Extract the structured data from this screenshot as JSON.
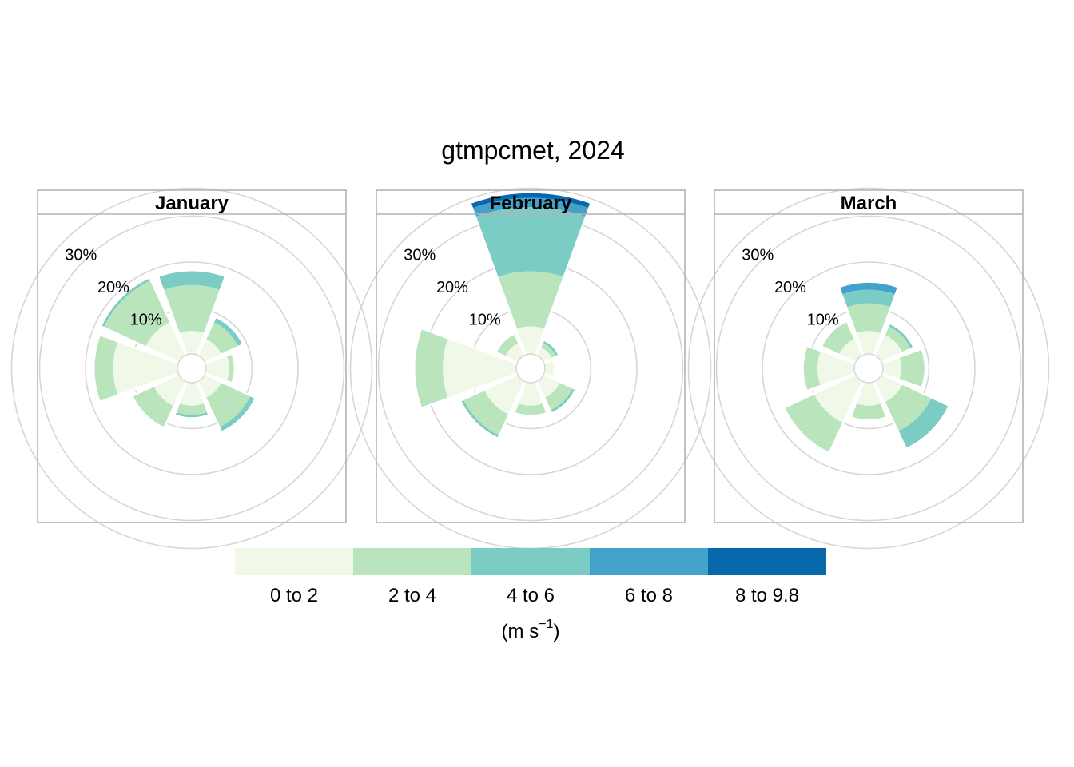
{
  "chart_data": {
    "type": "wind-rose",
    "title": "gtmpcmet, 2024",
    "ring_labels": [
      "10%",
      "20%",
      "30%"
    ],
    "rings": [
      10,
      20,
      30
    ],
    "legend": {
      "categories": [
        "0 to 2",
        "2 to 4",
        "4 to 6",
        "6 to 8",
        "8 to 9.8"
      ],
      "colors": [
        "#F0F9E8",
        "#BAE4BC",
        "#7BCCC4",
        "#43A2CA",
        "#0868AC"
      ],
      "units_main": "(m s",
      "units_sup": "−1",
      "units_close": ")"
    },
    "directions": [
      0,
      45,
      90,
      135,
      180,
      225,
      270,
      315
    ],
    "panels": [
      {
        "name": "January",
        "bins": [
          [
            5,
            10,
            3,
            0,
            0
          ],
          [
            4,
            4,
            1,
            0,
            0
          ],
          [
            5,
            1,
            0,
            0,
            0
          ],
          [
            4,
            7,
            1,
            0,
            0
          ],
          [
            5,
            2,
            0.5,
            0,
            0
          ],
          [
            6,
            5,
            0,
            0,
            0
          ],
          [
            14,
            4,
            0,
            0,
            0
          ],
          [
            8,
            10,
            0.5,
            0,
            0
          ]
        ]
      },
      {
        "name": "February",
        "bins": [
          [
            6,
            12,
            14,
            2,
            1
          ],
          [
            2,
            1,
            0.5,
            0,
            0
          ],
          [
            2,
            0,
            0,
            0,
            0
          ],
          [
            4,
            3,
            0.5,
            0,
            0
          ],
          [
            5,
            2,
            0,
            0,
            0
          ],
          [
            8,
            5,
            0.5,
            0,
            0
          ],
          [
            16,
            6,
            0,
            0,
            0
          ],
          [
            3,
            2,
            0,
            0,
            0
          ]
        ]
      },
      {
        "name": "March",
        "bins": [
          [
            5,
            6,
            3,
            1.5,
            0
          ],
          [
            5,
            2,
            0.5,
            0,
            0
          ],
          [
            4,
            5,
            0,
            0,
            0
          ],
          [
            5,
            7,
            4,
            0,
            0
          ],
          [
            5,
            3,
            0,
            0,
            0
          ],
          [
            10,
            7,
            0,
            0,
            0
          ],
          [
            8,
            3,
            0,
            0,
            0
          ],
          [
            4,
            4,
            0,
            0,
            0
          ]
        ]
      }
    ]
  }
}
